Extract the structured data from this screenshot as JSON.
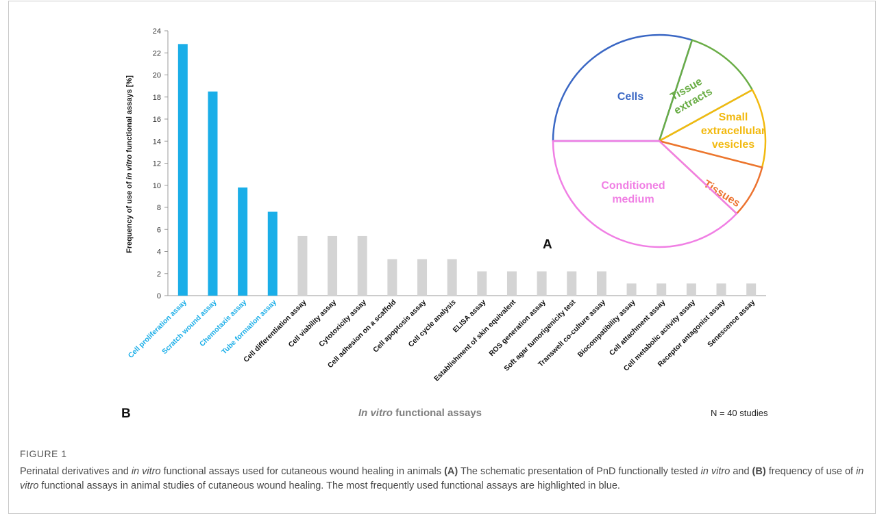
{
  "chart_data": [
    {
      "type": "bar",
      "panel_label": "B",
      "ylabel_parts": [
        "Frequency of use of ",
        "in vitro",
        " functional assays [%]"
      ],
      "xlabel_parts": [
        "In vitro",
        " functional assays"
      ],
      "note": "N = 40 studies",
      "ylim": [
        0,
        24
      ],
      "yticks": [
        0,
        2,
        4,
        6,
        8,
        10,
        12,
        14,
        16,
        18,
        20,
        22,
        24
      ],
      "grid": false,
      "categories": [
        "Cell proliferation assay",
        "Scratch wound assay",
        "Chemotaxis assay",
        "Tube formation assay",
        "Cell differentiation assay",
        "Cell viability assay",
        "Cytotoxicity assay",
        "Cell adhesion on a scaffold",
        "Cell apoptosis assay",
        "Cell cycle analysis",
        "ELISA assay",
        "Establishment of skin equivalent",
        "ROS generation assay",
        "Soft agar tumorigenicity test",
        "Transwell co-culture assay",
        "Biocompatibility assay",
        "Cell attachment assay",
        "Cell metabolic activity assay",
        "Receptor antagonist assay",
        "Senescence assay"
      ],
      "values": [
        22.8,
        18.5,
        9.8,
        7.6,
        5.4,
        5.4,
        5.4,
        3.3,
        3.3,
        3.3,
        2.2,
        2.2,
        2.2,
        2.2,
        2.2,
        1.1,
        1.1,
        1.1,
        1.1,
        1.1
      ],
      "highlighted": [
        true,
        true,
        true,
        true,
        false,
        false,
        false,
        false,
        false,
        false,
        false,
        false,
        false,
        false,
        false,
        false,
        false,
        false,
        false,
        false
      ],
      "colors": {
        "highlight": "#1aaee8",
        "other": "#d4d4d4",
        "highlight_label": "#1aaee8",
        "other_label": "#111111",
        "axis": "#999999"
      }
    },
    {
      "type": "pie",
      "panel_label": "A",
      "start_angle_deg": 180,
      "direction": "clockwise",
      "slices": [
        {
          "label_lines": [
            "Cells"
          ],
          "value": 30,
          "color": "#3a67c4"
        },
        {
          "label_lines": [
            "Tissue",
            "extracts"
          ],
          "value": 12,
          "color": "#6aad46"
        },
        {
          "label_lines": [
            "Small",
            "extracellular",
            "vesicles"
          ],
          "value": 12,
          "color": "#f2b90f"
        },
        {
          "label_lines": [
            "Tissues"
          ],
          "value": 8,
          "color": "#ec7330"
        },
        {
          "label_lines": [
            "Conditioned",
            "medium"
          ],
          "value": 38,
          "color": "#f07fe4"
        }
      ]
    }
  ],
  "caption": {
    "title": "FIGURE 1",
    "segments": [
      {
        "t": "Perinatal derivatives and ",
        "s": "n"
      },
      {
        "t": "in vitro",
        "s": "i"
      },
      {
        "t": " functional assays used for cutaneous wound healing in animals ",
        "s": "n"
      },
      {
        "t": "(A)",
        "s": "b"
      },
      {
        "t": " The schematic presentation of PnD functionally tested ",
        "s": "n"
      },
      {
        "t": "in vitro",
        "s": "i"
      },
      {
        "t": " and ",
        "s": "n"
      },
      {
        "t": "(B)",
        "s": "b"
      },
      {
        "t": " frequency of use of ",
        "s": "n"
      },
      {
        "t": "in vitro",
        "s": "i"
      },
      {
        "t": " functional assays in animal studies of cutaneous wound healing. The most frequently used functional assays are highlighted in blue.",
        "s": "n"
      }
    ]
  }
}
